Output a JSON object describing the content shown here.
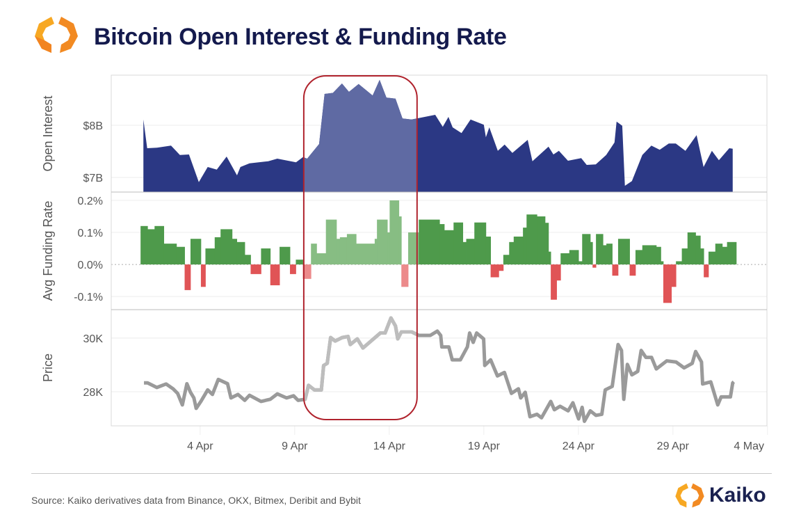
{
  "header": {
    "title": "Bitcoin Open Interest & Funding Rate"
  },
  "footer": {
    "source": "Source: Kaiko derivatives data from Binance, OKX, Bitmex, Deribit and Bybit",
    "brand": "Kaiko"
  },
  "colors": {
    "oi": "#2b3884",
    "oi_highlight": "#5f6aa3",
    "pos": "#4e9a4b",
    "pos_highlight": "#87bd83",
    "neg": "#e05456",
    "neg_highlight": "#ec8a8b",
    "price": "#9a9a9a",
    "price_highlight": "#bdbdbd",
    "box": "#b0232d",
    "title": "#141a4d"
  },
  "chart_data": [
    {
      "type": "area",
      "panel": "open_interest",
      "ylabel": "Open Interest",
      "unit": "$B",
      "ylim": [
        6.72,
        8.96
      ],
      "yticks": [
        {
          "value": 7,
          "label": "$7B"
        },
        {
          "value": 8,
          "label": "$8B"
        }
      ],
      "x_unit": "day of April 2023 (32 = 2 May)",
      "x": [
        1.0,
        1.2,
        1.72,
        2.46,
        2.93,
        3.41,
        3.93,
        4.4,
        4.88,
        5.4,
        5.95,
        6.13,
        6.61,
        7.6,
        8.08,
        9.07,
        9.44,
        9.66,
        10.29,
        10.58,
        11.02,
        11.5,
        11.87,
        12.38,
        13.12,
        13.49,
        13.85,
        14.33,
        14.7,
        15.18,
        16.43,
        16.83,
        17.13,
        17.35,
        17.82,
        18.3,
        19.0,
        19.11,
        19.29,
        19.74,
        20.1,
        20.51,
        21.32,
        21.57,
        22.42,
        22.68,
        22.97,
        23.45,
        24.15,
        24.44,
        24.92,
        25.47,
        25.91,
        26.02,
        26.32,
        26.46,
        26.83,
        27.38,
        27.86,
        28.3,
        28.78,
        29.15,
        29.66,
        30.25,
        30.62,
        31.06,
        31.43,
        31.98,
        32.16
      ],
      "values": [
        8.11,
        7.56,
        7.57,
        7.61,
        7.43,
        7.44,
        6.91,
        7.2,
        7.15,
        7.4,
        7.04,
        7.2,
        7.27,
        7.31,
        7.36,
        7.29,
        7.39,
        7.36,
        7.64,
        8.6,
        8.62,
        8.8,
        8.64,
        8.79,
        8.57,
        8.87,
        8.53,
        8.51,
        8.13,
        8.11,
        8.2,
        7.97,
        8.16,
        7.96,
        7.85,
        8.11,
        8.01,
        7.77,
        7.96,
        7.51,
        7.63,
        7.47,
        7.72,
        7.31,
        7.59,
        7.44,
        7.51,
        7.32,
        7.37,
        7.24,
        7.25,
        7.43,
        7.67,
        8.07,
        7.99,
        6.84,
        6.93,
        7.43,
        7.61,
        7.53,
        7.65,
        7.65,
        7.51,
        7.81,
        7.2,
        7.51,
        7.33,
        7.56,
        7.55
      ]
    },
    {
      "type": "bar",
      "panel": "funding_rate",
      "ylabel": "Avg Funding Rate",
      "unit": "%",
      "ylim": [
        -0.141,
        0.226
      ],
      "yticks": [
        {
          "value": -0.1,
          "label": "-0.1%"
        },
        {
          "value": 0,
          "label": "0.0%"
        },
        {
          "value": 0.1,
          "label": "0.1%"
        },
        {
          "value": 0.2,
          "label": "0.2%"
        }
      ],
      "segment_starts": [
        0.85,
        1.22,
        1.59,
        2.08,
        2.75,
        3.18,
        3.49,
        4.04,
        4.28,
        4.77,
        5.08,
        5.69,
        5.94,
        6.36,
        6.67,
        7.22,
        7.71,
        8.2,
        8.75,
        9.06,
        9.43,
        9.86,
        10.16,
        10.65,
        11.21,
        11.39,
        11.76,
        12.25,
        13.23,
        13.35,
        13.9,
        14.02,
        14.51,
        14.64,
        15.0,
        15.56,
        16.66,
        16.91,
        17.4,
        17.89,
        18.07,
        18.5,
        19.11,
        19.36,
        19.79,
        20.03,
        20.34,
        20.58,
        21.07,
        21.26,
        21.81,
        22.24,
        22.42,
        22.54,
        22.85,
        23.06,
        23.52,
        24.01,
        24.2,
        24.63,
        24.75,
        24.93,
        25.3,
        25.48,
        25.79,
        26.1,
        26.71,
        27.02,
        27.38,
        28.12,
        28.36,
        28.49,
        28.92,
        29.16,
        29.47,
        29.77,
        30.2,
        30.45,
        30.63,
        30.88,
        31.24,
        31.61,
        31.86
      ],
      "segment_end": 32.35,
      "values": [
        0.12,
        0.11,
        0.12,
        0.065,
        0.055,
        -0.08,
        0.08,
        -0.07,
        0.05,
        0.085,
        0.11,
        0.08,
        0.07,
        0.03,
        -0.03,
        0.05,
        -0.065,
        0.055,
        -0.03,
        0.015,
        -0.045,
        0.065,
        0.035,
        0.14,
        0.08,
        0.085,
        0.095,
        0.065,
        0.08,
        0.14,
        0.1,
        0.2,
        0.15,
        -0.07,
        0.1,
        0.14,
        0.126,
        0.107,
        0.131,
        0.07,
        0.08,
        0.131,
        0.087,
        -0.04,
        -0.02,
        0.03,
        0.07,
        0.087,
        0.115,
        0.156,
        0.15,
        0.13,
        0.04,
        -0.11,
        -0.05,
        0.035,
        0.045,
        0.01,
        0.095,
        0.07,
        -0.01,
        0.095,
        0.06,
        0.065,
        -0.035,
        0.08,
        -0.035,
        0.045,
        0.06,
        0.055,
        0.01,
        -0.12,
        -0.07,
        0.01,
        0.05,
        0.1,
        0.09,
        0.05,
        -0.04,
        0.04,
        0.065,
        0.055,
        0.07
      ]
    },
    {
      "type": "line",
      "panel": "price",
      "ylabel": "Price",
      "unit": "K USD",
      "ylim": [
        26.73,
        31.06
      ],
      "yticks": [
        {
          "value": 28,
          "label": "28K"
        },
        {
          "value": 30,
          "label": "30K"
        }
      ],
      "x": [
        1.03,
        1.22,
        1.71,
        2.2,
        2.57,
        2.81,
        3.06,
        3.3,
        3.49,
        3.67,
        3.79,
        4.04,
        4.4,
        4.65,
        4.96,
        5.45,
        5.63,
        6.0,
        6.36,
        6.61,
        7.22,
        7.71,
        8.08,
        8.57,
        8.94,
        9.18,
        9.55,
        9.73,
        10.04,
        10.41,
        10.53,
        10.72,
        10.9,
        11.14,
        11.51,
        11.82,
        11.94,
        12.31,
        12.61,
        13.1,
        13.53,
        13.78,
        14.09,
        14.33,
        14.45,
        14.64,
        15.19,
        15.56,
        16.17,
        16.54,
        16.72,
        16.78,
        17.15,
        17.33,
        17.76,
        18.13,
        18.25,
        18.44,
        18.62,
        18.99,
        19.05,
        19.36,
        19.72,
        20.09,
        20.46,
        20.83,
        20.95,
        21.19,
        21.44,
        21.81,
        22.05,
        22.54,
        22.73,
        23.03,
        23.46,
        23.71,
        24.01,
        24.2,
        24.32,
        24.63,
        24.93,
        25.24,
        25.42,
        25.79,
        26.1,
        26.28,
        26.4,
        26.59,
        26.83,
        27.14,
        27.32,
        27.57,
        27.87,
        28.12,
        28.67,
        29.16,
        29.59,
        30.02,
        30.2,
        30.51,
        30.57,
        31.0,
        31.37,
        31.55,
        32.04,
        32.16,
        32.22
      ],
      "values": [
        28.33,
        28.33,
        28.16,
        28.29,
        28.11,
        27.94,
        27.51,
        28.3,
        27.98,
        27.77,
        27.38,
        27.64,
        28.07,
        27.9,
        28.46,
        28.3,
        27.77,
        27.9,
        27.68,
        27.87,
        27.64,
        27.72,
        27.92,
        27.77,
        27.85,
        27.68,
        27.72,
        28.24,
        28.07,
        28.07,
        28.98,
        29.06,
        30.02,
        29.89,
        30.02,
        30.06,
        29.76,
        29.97,
        29.63,
        29.93,
        30.19,
        30.19,
        30.75,
        30.45,
        29.97,
        30.23,
        30.23,
        30.1,
        30.1,
        30.26,
        30.1,
        29.67,
        29.67,
        29.19,
        29.19,
        29.67,
        30.19,
        29.84,
        30.19,
        29.97,
        28.98,
        29.19,
        28.59,
        28.72,
        27.94,
        28.11,
        27.77,
        27.98,
        27.07,
        27.16,
        27.03,
        27.64,
        27.33,
        27.46,
        27.29,
        27.59,
        26.99,
        27.42,
        26.9,
        27.29,
        27.12,
        27.16,
        28.07,
        28.2,
        29.76,
        29.54,
        27.72,
        29.02,
        28.63,
        28.76,
        29.54,
        29.28,
        29.28,
        28.85,
        29.15,
        29.11,
        28.89,
        29.06,
        29.5,
        29.11,
        28.29,
        28.37,
        27.51,
        27.81,
        27.81,
        28.33,
        28.37
      ]
    }
  ],
  "x_axis": {
    "xlim": [
      -0.7,
      33.97
    ],
    "ticks": [
      {
        "value": 4,
        "label": "4 Apr"
      },
      {
        "value": 9,
        "label": "9 Apr"
      },
      {
        "value": 14,
        "label": "14 Apr"
      },
      {
        "value": 19,
        "label": "19 Apr"
      },
      {
        "value": 24,
        "label": "24 Apr"
      },
      {
        "value": 29,
        "label": "29 Apr"
      },
      {
        "value": 34,
        "label": "4 May"
      }
    ]
  },
  "highlight": {
    "start": 9.48,
    "end": 15.47
  }
}
